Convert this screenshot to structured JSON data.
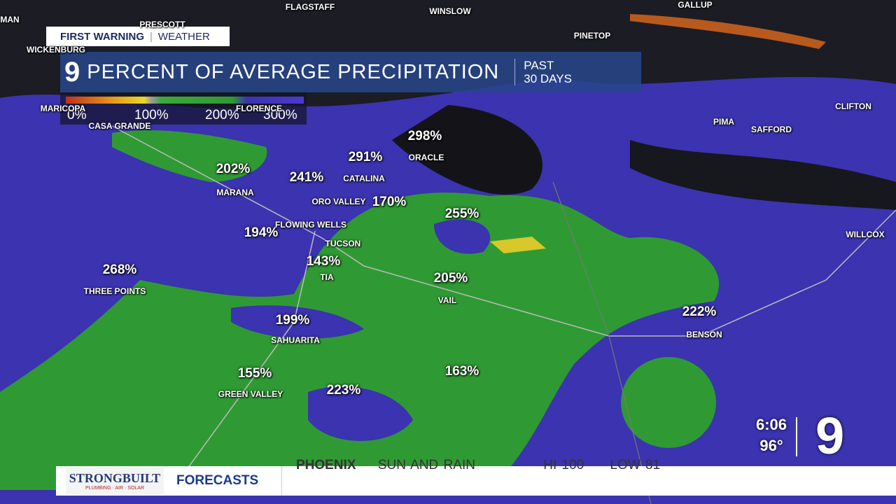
{
  "header": {
    "brand": "FIRST WARNING",
    "section": "WEATHER",
    "channel": "9",
    "title": "PERCENT OF AVERAGE PRECIPITATION",
    "period_line1": "PAST",
    "period_line2": "30 DAYS"
  },
  "legend": {
    "labels": [
      "0%",
      "100%",
      "200%",
      "300%"
    ]
  },
  "places": [
    "MAN",
    "FLAGSTAFF",
    "WINSLOW",
    "GALLUP",
    "PRESCOTT",
    "WICKENBURG",
    "PINETOP",
    "MARICOPA",
    "FLORENCE",
    "CASA GRANDE",
    "CLIFTON",
    "PIMA",
    "SAFFORD",
    "ORACLE",
    "CATALINA",
    "MARANA",
    "ORO VALLEY",
    "FLOWING WELLS",
    "TUCSON",
    "TIA",
    "THREE POINTS",
    "VAIL",
    "WILLCOX",
    "BENSON",
    "SAHUARITA",
    "GREEN VALLEY"
  ],
  "readings": [
    "298%",
    "291%",
    "202%",
    "241%",
    "170%",
    "255%",
    "194%",
    "143%",
    "268%",
    "205%",
    "222%",
    "199%",
    "155%",
    "163%",
    "223%"
  ],
  "ticker": {
    "sponsor": "STRONGBUILT",
    "sponsor_tagline": "PLUMBING · AIR · SOLAR",
    "section": "FORECASTS",
    "city": "PHOENIX",
    "conditions": "SUN AND RAIN",
    "high": "HI 100",
    "low": "LOW 81"
  },
  "status": {
    "time": "6:06",
    "temperature": "96°",
    "logo": "9"
  }
}
